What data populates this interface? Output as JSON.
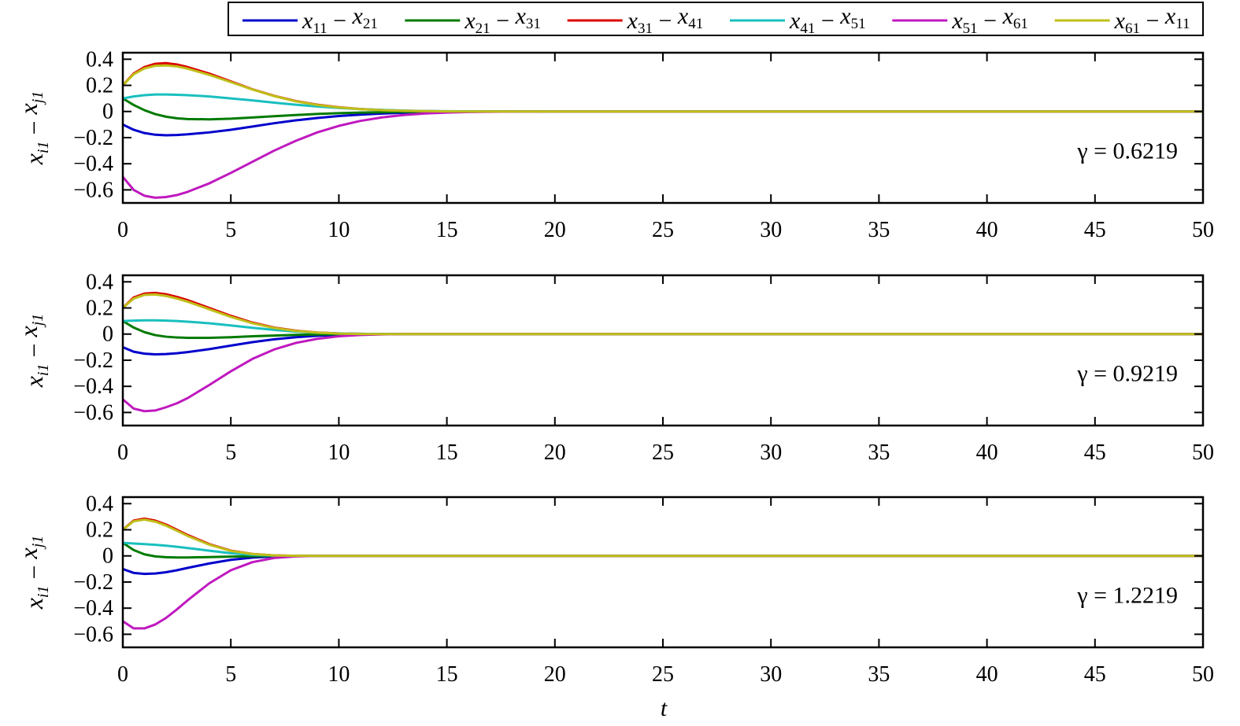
{
  "figure": {
    "xlabel": "t",
    "ylabel": {
      "part1": "x",
      "sub1": "i1",
      "minus": " − ",
      "part2": "x",
      "sub2": "j1"
    }
  },
  "legend": [
    {
      "a": "x",
      "a_sub": "11",
      "minus": " − ",
      "b": "x",
      "b_sub": "21",
      "color": "#0000cc"
    },
    {
      "a": "x",
      "a_sub": "21",
      "minus": " − ",
      "b": "x",
      "b_sub": "31",
      "color": "#007a00"
    },
    {
      "a": "x",
      "a_sub": "31",
      "minus": " − ",
      "b": "x",
      "b_sub": "41",
      "color": "#dd0000"
    },
    {
      "a": "x",
      "a_sub": "41",
      "minus": " − ",
      "b": "x",
      "b_sub": "51",
      "color": "#19bfbf"
    },
    {
      "a": "x",
      "a_sub": "51",
      "minus": " − ",
      "b": "x",
      "b_sub": "61",
      "color": "#bf19bf"
    },
    {
      "a": "x",
      "a_sub": "61",
      "minus": " − ",
      "b": "x",
      "b_sub": "11",
      "color": "#bfbf19"
    }
  ],
  "chart_data": [
    {
      "type": "line",
      "annotation": "γ = 0.6219",
      "xlim": [
        0,
        50
      ],
      "ylim": [
        -0.7,
        0.45
      ],
      "xticks": [
        0,
        5,
        10,
        15,
        20,
        25,
        30,
        35,
        40,
        45,
        50
      ],
      "xtick_labels": [
        "0",
        "5",
        "10",
        "15",
        "20",
        "25",
        "30",
        "35",
        "40",
        "45",
        "50"
      ],
      "yticks": [
        0.4,
        0.2,
        0,
        -0.2,
        -0.4,
        -0.6
      ],
      "ytick_labels": [
        "0.4",
        "0.2",
        "0",
        "−0.2",
        "−0.4",
        "−0.6"
      ],
      "x": [
        0,
        0.5,
        1,
        1.5,
        2,
        2.5,
        3,
        4,
        5,
        6,
        7,
        8,
        9,
        10,
        11,
        12,
        13,
        14,
        15,
        16,
        17,
        18,
        20,
        22,
        25,
        30,
        35,
        40,
        45,
        50
      ],
      "series": [
        {
          "name": "x11 − x21",
          "values": [
            -0.1,
            -0.14,
            -0.165,
            -0.178,
            -0.182,
            -0.18,
            -0.175,
            -0.16,
            -0.14,
            -0.115,
            -0.09,
            -0.068,
            -0.05,
            -0.035,
            -0.024,
            -0.016,
            -0.01,
            -0.006,
            -0.003,
            -0.002,
            -0.001,
            0,
            0,
            0,
            0,
            0,
            0,
            0,
            0,
            0
          ]
        },
        {
          "name": "x21 − x31",
          "values": [
            0.1,
            0.05,
            0.01,
            -0.02,
            -0.04,
            -0.052,
            -0.058,
            -0.06,
            -0.055,
            -0.046,
            -0.036,
            -0.027,
            -0.019,
            -0.013,
            -0.008,
            -0.005,
            -0.003,
            -0.002,
            -0.001,
            0,
            0,
            0,
            0,
            0,
            0,
            0,
            0,
            0,
            0,
            0
          ]
        },
        {
          "name": "x31 − x41",
          "values": [
            0.2,
            0.29,
            0.34,
            0.365,
            0.37,
            0.36,
            0.34,
            0.29,
            0.23,
            0.17,
            0.12,
            0.08,
            0.052,
            0.032,
            0.019,
            0.011,
            0.006,
            0.003,
            0.001,
            0,
            0,
            0,
            0,
            0,
            0,
            0,
            0,
            0,
            0,
            0
          ]
        },
        {
          "name": "x41 − x51",
          "values": [
            0.1,
            0.115,
            0.125,
            0.13,
            0.13,
            0.128,
            0.125,
            0.115,
            0.1,
            0.085,
            0.068,
            0.052,
            0.038,
            0.027,
            0.018,
            0.012,
            0.007,
            0.004,
            0.002,
            0.001,
            0,
            0,
            0,
            0,
            0,
            0,
            0,
            0,
            0,
            0
          ]
        },
        {
          "name": "x51 − x61",
          "values": [
            -0.5,
            -0.6,
            -0.645,
            -0.66,
            -0.655,
            -0.64,
            -0.615,
            -0.55,
            -0.47,
            -0.385,
            -0.3,
            -0.225,
            -0.16,
            -0.11,
            -0.072,
            -0.045,
            -0.027,
            -0.015,
            -0.008,
            -0.004,
            -0.002,
            -0.001,
            0,
            0,
            0,
            0,
            0,
            0,
            0,
            0
          ]
        },
        {
          "name": "x61 − x11",
          "values": [
            0.2,
            0.285,
            0.33,
            0.35,
            0.352,
            0.345,
            0.328,
            0.28,
            0.225,
            0.168,
            0.118,
            0.078,
            0.05,
            0.031,
            0.018,
            0.01,
            0.005,
            0.003,
            0.001,
            0,
            0,
            0,
            0,
            0,
            0,
            0,
            0,
            0,
            0,
            0
          ]
        }
      ]
    },
    {
      "type": "line",
      "annotation": "γ = 0.9219",
      "xlim": [
        0,
        50
      ],
      "ylim": [
        -0.7,
        0.45
      ],
      "xticks": [
        0,
        5,
        10,
        15,
        20,
        25,
        30,
        35,
        40,
        45,
        50
      ],
      "xtick_labels": [
        "0",
        "5",
        "10",
        "15",
        "20",
        "25",
        "30",
        "35",
        "40",
        "45",
        "50"
      ],
      "yticks": [
        0.4,
        0.2,
        0,
        -0.2,
        -0.4,
        -0.6
      ],
      "ytick_labels": [
        "0.4",
        "0.2",
        "0",
        "−0.2",
        "−0.4",
        "−0.6"
      ],
      "x": [
        0,
        0.5,
        1,
        1.5,
        2,
        2.5,
        3,
        4,
        5,
        6,
        7,
        8,
        9,
        10,
        11,
        12,
        13,
        14,
        15,
        16,
        17,
        18,
        20,
        22,
        25,
        30,
        35,
        40,
        45,
        50
      ],
      "series": [
        {
          "name": "x11 − x21",
          "values": [
            -0.1,
            -0.135,
            -0.15,
            -0.155,
            -0.153,
            -0.147,
            -0.138,
            -0.115,
            -0.088,
            -0.062,
            -0.04,
            -0.024,
            -0.013,
            -0.007,
            -0.003,
            -0.001,
            0,
            0,
            0,
            0,
            0,
            0,
            0,
            0,
            0,
            0,
            0,
            0,
            0,
            0
          ]
        },
        {
          "name": "x21 − x31",
          "values": [
            0.1,
            0.05,
            0.015,
            -0.008,
            -0.02,
            -0.026,
            -0.029,
            -0.029,
            -0.024,
            -0.017,
            -0.011,
            -0.006,
            -0.003,
            -0.001,
            0,
            0,
            0,
            0,
            0,
            0,
            0,
            0,
            0,
            0,
            0,
            0,
            0,
            0,
            0,
            0
          ]
        },
        {
          "name": "x31 − x41",
          "values": [
            0.2,
            0.28,
            0.31,
            0.315,
            0.305,
            0.285,
            0.26,
            0.2,
            0.14,
            0.088,
            0.05,
            0.026,
            0.012,
            0.005,
            0.002,
            0,
            0,
            0,
            0,
            0,
            0,
            0,
            0,
            0,
            0,
            0,
            0,
            0,
            0,
            0
          ]
        },
        {
          "name": "x41 − x51",
          "values": [
            0.1,
            0.103,
            0.105,
            0.105,
            0.103,
            0.1,
            0.095,
            0.083,
            0.066,
            0.048,
            0.032,
            0.019,
            0.01,
            0.005,
            0.002,
            0,
            0,
            0,
            0,
            0,
            0,
            0,
            0,
            0,
            0,
            0,
            0,
            0,
            0,
            0
          ]
        },
        {
          "name": "x51 − x61",
          "values": [
            -0.5,
            -0.57,
            -0.59,
            -0.585,
            -0.56,
            -0.53,
            -0.49,
            -0.39,
            -0.285,
            -0.19,
            -0.118,
            -0.068,
            -0.036,
            -0.017,
            -0.007,
            -0.002,
            0,
            0,
            0,
            0,
            0,
            0,
            0,
            0,
            0,
            0,
            0,
            0,
            0,
            0
          ]
        },
        {
          "name": "x61 − x11",
          "values": [
            0.2,
            0.272,
            0.3,
            0.303,
            0.292,
            0.272,
            0.248,
            0.19,
            0.132,
            0.083,
            0.047,
            0.024,
            0.011,
            0.004,
            0.001,
            0,
            0,
            0,
            0,
            0,
            0,
            0,
            0,
            0,
            0,
            0,
            0,
            0,
            0,
            0
          ]
        }
      ]
    },
    {
      "type": "line",
      "annotation": "γ = 1.2219",
      "xlim": [
        0,
        50
      ],
      "ylim": [
        -0.7,
        0.45
      ],
      "xticks": [
        0,
        5,
        10,
        15,
        20,
        25,
        30,
        35,
        40,
        45,
        50
      ],
      "xtick_labels": [
        "0",
        "5",
        "10",
        "15",
        "20",
        "25",
        "30",
        "35",
        "40",
        "45",
        "50"
      ],
      "yticks": [
        0.4,
        0.2,
        0,
        -0.2,
        -0.4,
        -0.6
      ],
      "ytick_labels": [
        "0.4",
        "0.2",
        "0",
        "−0.2",
        "−0.4",
        "−0.6"
      ],
      "x": [
        0,
        0.5,
        1,
        1.5,
        2,
        2.5,
        3,
        4,
        5,
        6,
        7,
        8,
        9,
        10,
        11,
        12,
        13,
        14,
        15,
        16,
        17,
        18,
        20,
        22,
        25,
        30,
        35,
        40,
        45,
        50
      ],
      "series": [
        {
          "name": "x11 − x21",
          "values": [
            -0.1,
            -0.13,
            -0.138,
            -0.135,
            -0.125,
            -0.11,
            -0.092,
            -0.058,
            -0.03,
            -0.013,
            -0.004,
            -0.001,
            0,
            0,
            0,
            0,
            0,
            0,
            0,
            0,
            0,
            0,
            0,
            0,
            0,
            0,
            0,
            0,
            0,
            0
          ]
        },
        {
          "name": "x21 − x31",
          "values": [
            0.1,
            0.045,
            0.012,
            -0.004,
            -0.01,
            -0.012,
            -0.012,
            -0.009,
            -0.005,
            -0.002,
            0,
            0,
            0,
            0,
            0,
            0,
            0,
            0,
            0,
            0,
            0,
            0,
            0,
            0,
            0,
            0,
            0,
            0,
            0,
            0
          ]
        },
        {
          "name": "x31 − x41",
          "values": [
            0.2,
            0.27,
            0.285,
            0.27,
            0.24,
            0.2,
            0.16,
            0.09,
            0.04,
            0.015,
            0.004,
            0.001,
            0,
            0,
            0,
            0,
            0,
            0,
            0,
            0,
            0,
            0,
            0,
            0,
            0,
            0,
            0,
            0,
            0,
            0
          ]
        },
        {
          "name": "x41 − x51",
          "values": [
            0.1,
            0.095,
            0.09,
            0.085,
            0.078,
            0.07,
            0.06,
            0.04,
            0.02,
            0.008,
            0.002,
            0,
            0,
            0,
            0,
            0,
            0,
            0,
            0,
            0,
            0,
            0,
            0,
            0,
            0,
            0,
            0,
            0,
            0,
            0
          ]
        },
        {
          "name": "x51 − x61",
          "values": [
            -0.5,
            -0.555,
            -0.555,
            -0.525,
            -0.475,
            -0.41,
            -0.34,
            -0.21,
            -0.11,
            -0.048,
            -0.016,
            -0.004,
            0,
            0,
            0,
            0,
            0,
            0,
            0,
            0,
            0,
            0,
            0,
            0,
            0,
            0,
            0,
            0,
            0,
            0
          ]
        },
        {
          "name": "x61 − x11",
          "values": [
            0.2,
            0.265,
            0.278,
            0.262,
            0.232,
            0.193,
            0.153,
            0.086,
            0.038,
            0.014,
            0.004,
            0.001,
            0,
            0,
            0,
            0,
            0,
            0,
            0,
            0,
            0,
            0,
            0,
            0,
            0,
            0,
            0,
            0,
            0,
            0
          ]
        }
      ]
    }
  ]
}
